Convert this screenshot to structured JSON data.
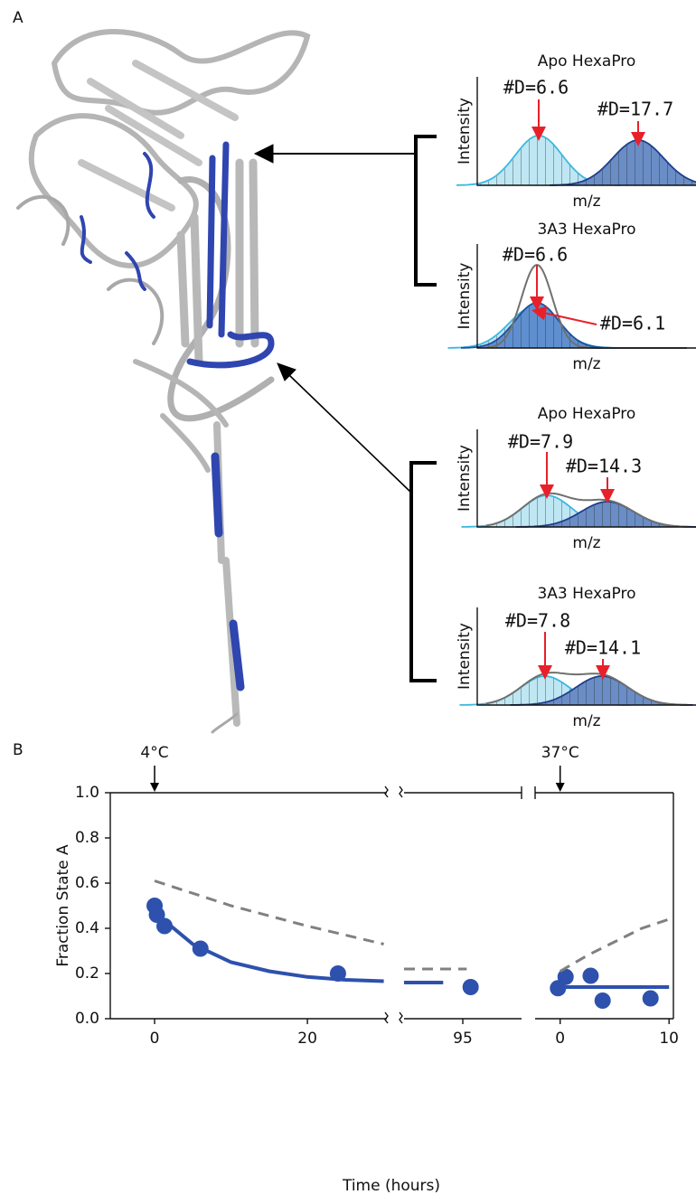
{
  "panel_labels": [
    "A",
    "B"
  ],
  "chart_data": [
    {
      "type": "spectrum",
      "title": "Apo HexaPro",
      "x_label": "m/z",
      "y_label": "Intensity",
      "annotations": [
        "#D=6.6",
        "#D=17.7"
      ]
    },
    {
      "type": "spectrum",
      "title": "3A3 HexaPro",
      "x_label": "m/z",
      "y_label": "Intensity",
      "annotations": [
        "#D=6.6",
        "#D=6.1"
      ]
    },
    {
      "type": "spectrum",
      "title": "Apo HexaPro",
      "x_label": "m/z",
      "y_label": "Intensity",
      "annotations": [
        "#D=7.9",
        "#D=14.3"
      ]
    },
    {
      "type": "spectrum",
      "title": "3A3 HexaPro",
      "x_label": "m/z",
      "y_label": "Intensity",
      "annotations": [
        "#D=7.8",
        "#D=14.1"
      ]
    },
    {
      "type": "scatter",
      "x_label": "Time (hours)",
      "y_label": "Fraction State A",
      "ylim": [
        0,
        1
      ],
      "yticks": [
        {
          "value": 0,
          "label": "0.0"
        },
        {
          "value": 0.2,
          "label": "0.2"
        },
        {
          "value": 0.4,
          "label": "0.4"
        },
        {
          "value": 0.6,
          "label": "0.6"
        },
        {
          "value": 0.8,
          "label": "0.8"
        },
        {
          "value": 1,
          "label": "1.0"
        }
      ],
      "segments": [
        {
          "xlim": [
            -5.8,
            30.4
          ],
          "xticks": [
            0,
            20
          ],
          "annotation": {
            "x": 0,
            "label": "4°C"
          },
          "series": [
            {
              "style": "points",
              "color": "#2d51ad",
              "x": [
                0,
                0.3,
                1.3,
                6,
                24
              ],
              "values": [
                0.5,
                0.46,
                0.41,
                0.31,
                0.2
              ]
            },
            {
              "style": "solid",
              "color": "#2d51ad",
              "x": [
                0,
                5,
                10,
                15,
                20,
                25,
                30
              ],
              "values": [
                0.47,
                0.33,
                0.25,
                0.21,
                0.185,
                0.172,
                0.166
              ]
            },
            {
              "style": "dashed",
              "color": "#808080",
              "x": [
                0,
                10,
                20,
                30
              ],
              "values": [
                0.61,
                0.5,
                0.41,
                0.33
              ]
            }
          ]
        },
        {
          "xlim": [
            92,
            98
          ],
          "xticks": [
            95
          ],
          "series": [
            {
              "style": "points",
              "color": "#2d51ad",
              "x": [
                95.4
              ],
              "values": [
                0.14
              ]
            },
            {
              "style": "solid",
              "color": "#2d51ad",
              "x": [
                92,
                94
              ],
              "values": [
                0.16,
                0.16
              ]
            },
            {
              "style": "dashed",
              "color": "#808080",
              "x": [
                92,
                95.2
              ],
              "values": [
                0.22,
                0.22
              ]
            }
          ]
        },
        {
          "xlim": [
            -2.3,
            10.4
          ],
          "xticks": [
            0,
            10
          ],
          "annotation": {
            "x": 0,
            "label": "37°C"
          },
          "series": [
            {
              "style": "points",
              "color": "#2d51ad",
              "x": [
                -0.2,
                0.5,
                2.8,
                3.9,
                8.3
              ],
              "values": [
                0.135,
                0.185,
                0.19,
                0.08,
                0.09
              ]
            },
            {
              "style": "solid",
              "color": "#2d51ad",
              "x": [
                0,
                10
              ],
              "values": [
                0.14,
                0.14
              ]
            },
            {
              "style": "dashed",
              "color": "#808080",
              "x": [
                0,
                2.5,
                5,
                7.5,
                10
              ],
              "values": [
                0.21,
                0.28,
                0.34,
                0.4,
                0.44
              ]
            }
          ]
        }
      ]
    }
  ]
}
